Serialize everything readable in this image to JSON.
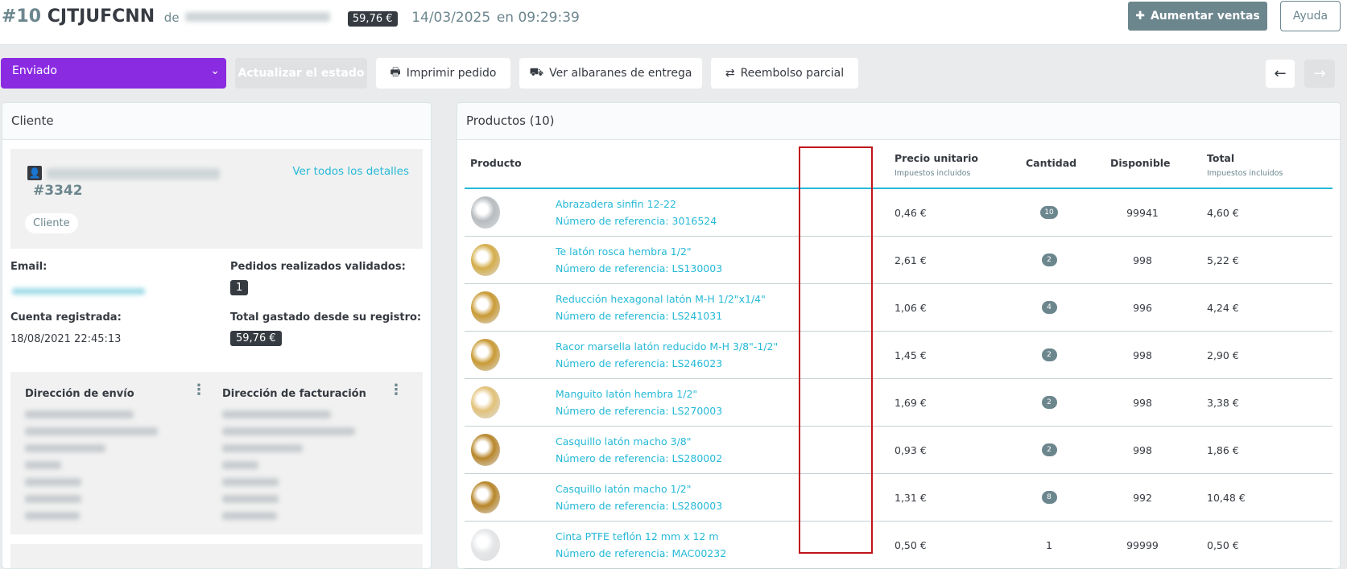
{
  "header": {
    "order_number": "#10",
    "order_reference": "CJTJUFCNN",
    "from_label": "de",
    "total_badge": "59,76 €",
    "date": "14/03/2025",
    "time_label": "en 09:29:39",
    "boost_button": "Aumentar ventas",
    "help_button": "Ayuda"
  },
  "toolbar": {
    "status_selected": "Enviado",
    "update_status": "Actualizar el estado",
    "print_order": "Imprimir pedido",
    "delivery_slips": "Ver albaranes de entrega",
    "partial_refund": "Reembolso parcial",
    "prev_icon": "arrow-left",
    "next_icon": "arrow-right"
  },
  "customer": {
    "card_title": "Cliente",
    "customer_id": "#3342",
    "view_details": "Ver todos los detalles",
    "group_badge": "Cliente",
    "email_label": "Email:",
    "orders_label": "Pedidos realizados validados:",
    "orders_count": "1",
    "registered_label": "Cuenta registrada:",
    "registered_date": "18/08/2021 22:45:13",
    "spent_label": "Total gastado desde su registro:",
    "spent_value": "59,76 €",
    "shipping_title": "Dirección de envío",
    "billing_title": "Dirección de facturación"
  },
  "products": {
    "card_title": "Productos (10)",
    "columns": {
      "product": "Producto",
      "unit_price": "Precio unitario",
      "unit_price_sub": "Impuestos incluidos",
      "quantity": "Cantidad",
      "available": "Disponible",
      "total": "Total",
      "total_sub": "Impuestos incluidos"
    },
    "rows": [
      {
        "name": "Abrazadera sinfin 12-22",
        "ref": "Número de referencia: 3016524",
        "price": "0,46 €",
        "qty": "10",
        "available": "99941",
        "total": "4,60 €",
        "img": "#b7bcc0"
      },
      {
        "name": "Te latón rosca hembra 1/2\"",
        "ref": "Número de referencia: LS130003",
        "price": "2,61 €",
        "qty": "2",
        "available": "998",
        "total": "5,22 €",
        "img": "#d4ad4a"
      },
      {
        "name": "Reducción hexagonal latón M-H 1/2\"x1/4\"",
        "ref": "Número de referencia: LS241031",
        "price": "1,06 €",
        "qty": "4",
        "available": "996",
        "total": "4,24 €",
        "img": "#c99a35"
      },
      {
        "name": "Racor marsella latón reducido M-H 3/8\"-1/2\"",
        "ref": "Número de referencia: LS246023",
        "price": "1,45 €",
        "qty": "2",
        "available": "998",
        "total": "2,90 €",
        "img": "#c99a35"
      },
      {
        "name": "Manguito latón hembra 1/2\"",
        "ref": "Número de referencia: LS270003",
        "price": "1,69 €",
        "qty": "2",
        "available": "998",
        "total": "3,38 €",
        "img": "#e2c27a"
      },
      {
        "name": "Casquillo latón macho 3/8\"",
        "ref": "Número de referencia: LS280002",
        "price": "0,93 €",
        "qty": "2",
        "available": "998",
        "total": "1,86 €",
        "img": "#b8862a"
      },
      {
        "name": "Casquillo latón macho 1/2\"",
        "ref": "Número de referencia: LS280003",
        "price": "1,31 €",
        "qty": "8",
        "available": "992",
        "total": "10,48 €",
        "img": "#b8862a"
      },
      {
        "name": "Cinta PTFE teflón 12 mm x 12 m",
        "ref": "Número de referencia: MAC00232",
        "price": "0,50 €",
        "qty": "1",
        "available": "99999",
        "total": "0,50 €",
        "img": "#e4e6e8"
      }
    ]
  },
  "colors": {
    "status": "#8a2be2",
    "accent": "#25b9d7",
    "boost": "#6c868e",
    "highlight_box": "#c0141b"
  }
}
